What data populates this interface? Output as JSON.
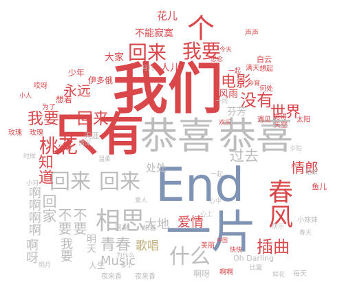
{
  "wordcloud": {
    "words": [
      {
        "text": "我们",
        "color": "#d9474b"
      },
      {
        "text": "只有",
        "color": "#d9474b"
      },
      {
        "text": "恭喜",
        "color": "#bdbdbd"
      },
      {
        "text": "恭喜",
        "color": "#bdbdbd"
      },
      {
        "text": "End",
        "color": "#7f94b5"
      },
      {
        "text": "一片",
        "color": "#7f94b5"
      },
      {
        "text": "回来",
        "color": "#bdbdbd"
      },
      {
        "text": "回来",
        "color": "#bdbdbd"
      },
      {
        "text": "相思",
        "color": "#bdbdbd"
      },
      {
        "text": "青春",
        "color": "#bdbdbd"
      },
      {
        "text": "Music",
        "color": "#bdbdbd"
      },
      {
        "text": "什么",
        "color": "#bdbdbd"
      },
      {
        "text": "爱情",
        "color": "#d9474b"
      },
      {
        "text": "插曲",
        "color": "#d9474b"
      },
      {
        "text": "歌唱",
        "color": "#c2ae78"
      },
      {
        "text": "大地",
        "color": "#bdbdbd"
      },
      {
        "text": "过去",
        "color": "#bdbdbd"
      },
      {
        "text": "情郎",
        "color": "#d9474b"
      },
      {
        "text": "春风",
        "color": "#d9474b"
      },
      {
        "text": "桃花",
        "color": "#d9474b"
      },
      {
        "text": "知道",
        "color": "#d9474b"
      },
      {
        "text": "我要",
        "color": "#d9474b"
      },
      {
        "text": "回来",
        "color": "#d9474b"
      },
      {
        "text": "世界",
        "color": "#d9474b"
      },
      {
        "text": "没有",
        "color": "#d9474b"
      },
      {
        "text": "电影",
        "color": "#d9474b"
      },
      {
        "text": "永远",
        "color": "#d9474b"
      },
      {
        "text": "我要",
        "color": "#d9474b"
      },
      {
        "text": "回来",
        "color": "#d9474b"
      },
      {
        "text": "个",
        "color": "#d9474b"
      },
      {
        "text": "花儿",
        "color": "#d9474b"
      },
      {
        "text": "不能寂寞",
        "color": "#d9474b"
      },
      {
        "text": "人儿",
        "color": "#d9474b"
      },
      {
        "text": "大家",
        "color": "#d9474b"
      },
      {
        "text": "不要",
        "color": "#bdbdbd"
      },
      {
        "text": "不要",
        "color": "#bdbdbd"
      },
      {
        "text": "啊呀",
        "color": "#bdbdbd"
      },
      {
        "text": "回家",
        "color": "#bdbdbd"
      },
      {
        "text": "我要",
        "color": "#bdbdbd"
      },
      {
        "text": "啊啊啊啊",
        "color": "#bdbdbd"
      },
      {
        "text": "人生",
        "color": "#bdbdbd"
      },
      {
        "text": "明天",
        "color": "#bdbdbd"
      },
      {
        "text": "夜来香",
        "color": "#bdbdbd"
      },
      {
        "text": "夜来香",
        "color": "#bdbdbd"
      },
      {
        "text": "Oh Darling",
        "color": "#bdbdbd"
      },
      {
        "text": "每天",
        "color": "#bdbdbd"
      },
      {
        "text": "啊呀",
        "color": "#bdbdbd"
      },
      {
        "text": "美丽",
        "color": "#d9474b"
      },
      {
        "text": "中国",
        "color": "#d9474b"
      },
      {
        "text": "快快",
        "color": "#d9474b"
      },
      {
        "text": "风雨",
        "color": "#d9474b"
      },
      {
        "text": "声声",
        "color": "#d9474b"
      },
      {
        "text": "白云",
        "color": "#d9474b"
      },
      {
        "text": "少年",
        "color": "#d9474b"
      },
      {
        "text": "伊多俄",
        "color": "#d9474b"
      },
      {
        "text": "为了",
        "color": "#d9474b"
      },
      {
        "text": "想着",
        "color": "#d9474b"
      },
      {
        "text": "光明",
        "color": "#d9474b"
      },
      {
        "text": "玫瑰",
        "color": "#d9474b"
      },
      {
        "text": "玫瑰",
        "color": "#d9474b"
      },
      {
        "text": "天涯",
        "color": "#bdbdbd"
      },
      {
        "text": "处处",
        "color": "#bdbdbd"
      },
      {
        "text": "芬芳",
        "color": "#bdbdbd"
      },
      {
        "text": "遇见",
        "color": "#d9474b"
      },
      {
        "text": "觉得",
        "color": "#d9474b"
      },
      {
        "text": "天空",
        "color": "#d9474b"
      },
      {
        "text": "太阳",
        "color": "#d9474b"
      },
      {
        "text": "鱼儿",
        "color": "#d9474b"
      },
      {
        "text": "小妹妹",
        "color": "#bdbdbd"
      },
      {
        "text": "想起",
        "color": "#d9474b"
      },
      {
        "text": "何处",
        "color": "#d9474b"
      },
      {
        "text": "一同",
        "color": "#bdbdbd"
      },
      {
        "text": "满天",
        "color": "#d9474b"
      },
      {
        "text": "回来",
        "color": "#bdbdbd"
      },
      {
        "text": "想着",
        "color": "#bdbdbd"
      },
      {
        "text": "多少",
        "color": "#bdbdbd"
      },
      {
        "text": "为什么",
        "color": "#bdbdbd"
      },
      {
        "text": "啊啊",
        "color": "#d9474b"
      },
      {
        "text": "哎呀",
        "color": "#d9474b"
      },
      {
        "text": "小河",
        "color": "#bdbdbd"
      },
      {
        "text": "时候",
        "color": "#bdbdbd"
      },
      {
        "text": "情深",
        "color": "#bdbdbd"
      },
      {
        "text": "月儿",
        "color": "#bdbdbd"
      },
      {
        "text": "今天",
        "color": "#d9474b"
      },
      {
        "text": "一起",
        "color": "#d9474b"
      },
      {
        "text": "明月",
        "color": "#bdbdbd"
      },
      {
        "text": "小人",
        "color": "#d9474b"
      },
      {
        "text": "今宵",
        "color": "#d9474b"
      },
      {
        "text": "思念",
        "color": "#d9474b"
      },
      {
        "text": "一起",
        "color": "#bdbdbd"
      },
      {
        "text": "欢乐",
        "color": "#d9474b"
      },
      {
        "text": "夕阳",
        "color": "#bdbdbd"
      },
      {
        "text": "姑娘",
        "color": "#bdbdbd"
      },
      {
        "text": "鲜花",
        "color": "#bdbdbd"
      },
      {
        "text": "春天",
        "color": "#bdbdbd"
      },
      {
        "text": "快乐",
        "color": "#bdbdbd"
      },
      {
        "text": "心上",
        "color": "#bdbdbd"
      },
      {
        "text": "心中",
        "color": "#bdbdbd"
      },
      {
        "text": "爱人",
        "color": "#bdbdbd"
      },
      {
        "text": "比翼",
        "color": "#bdbdbd"
      },
      {
        "text": "温柔",
        "color": "#bdbdbd"
      }
    ]
  }
}
